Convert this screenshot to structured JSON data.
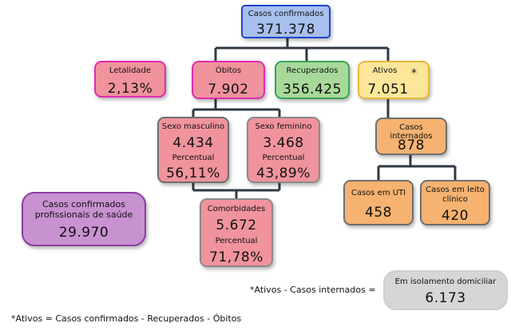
{
  "diagram": {
    "confirmados": {
      "label": "Casos confirmados",
      "value": "371.378"
    },
    "letalidade": {
      "label": "Letalidade",
      "value": "2,13%"
    },
    "obitos": {
      "label": "Óbitos",
      "value": "7.902"
    },
    "recuperados": {
      "label": "Recuperados",
      "value": "356.425"
    },
    "ativos": {
      "label": "Ativos",
      "value": "7.051",
      "marker": "*"
    },
    "sexo_masculino": {
      "label": "Sexo masculino",
      "value": "4.434",
      "pct_label": "Percentual",
      "pct_value": "56,11%"
    },
    "sexo_feminino": {
      "label": "Sexo feminino",
      "value": "3.468",
      "pct_label": "Percentual",
      "pct_value": "43,89%"
    },
    "comorbidades": {
      "label": "Comorbidades",
      "value": "5.672",
      "pct_label": "Percentual",
      "pct_value": "71,78%"
    },
    "casos_internados": {
      "label": "Casos internados",
      "value": "878"
    },
    "casos_uti": {
      "label": "Casos em UTI",
      "value": "458"
    },
    "casos_leito": {
      "label_line1": "Casos em leito",
      "label_line2": "clínico",
      "value": "420"
    },
    "profissionais": {
      "label_line1": "Casos confirmados",
      "label_line2": "profissionais de saúde",
      "value": "29.970"
    },
    "isolamento": {
      "label": "Em isolamento domiciliar",
      "value": "6.173"
    }
  },
  "footnotes": {
    "isolamento_formula": "*Ativos - Casos internados =",
    "ativos_formula": "*Ativos = Casos confirmados - Recuperados - Óbitos"
  }
}
